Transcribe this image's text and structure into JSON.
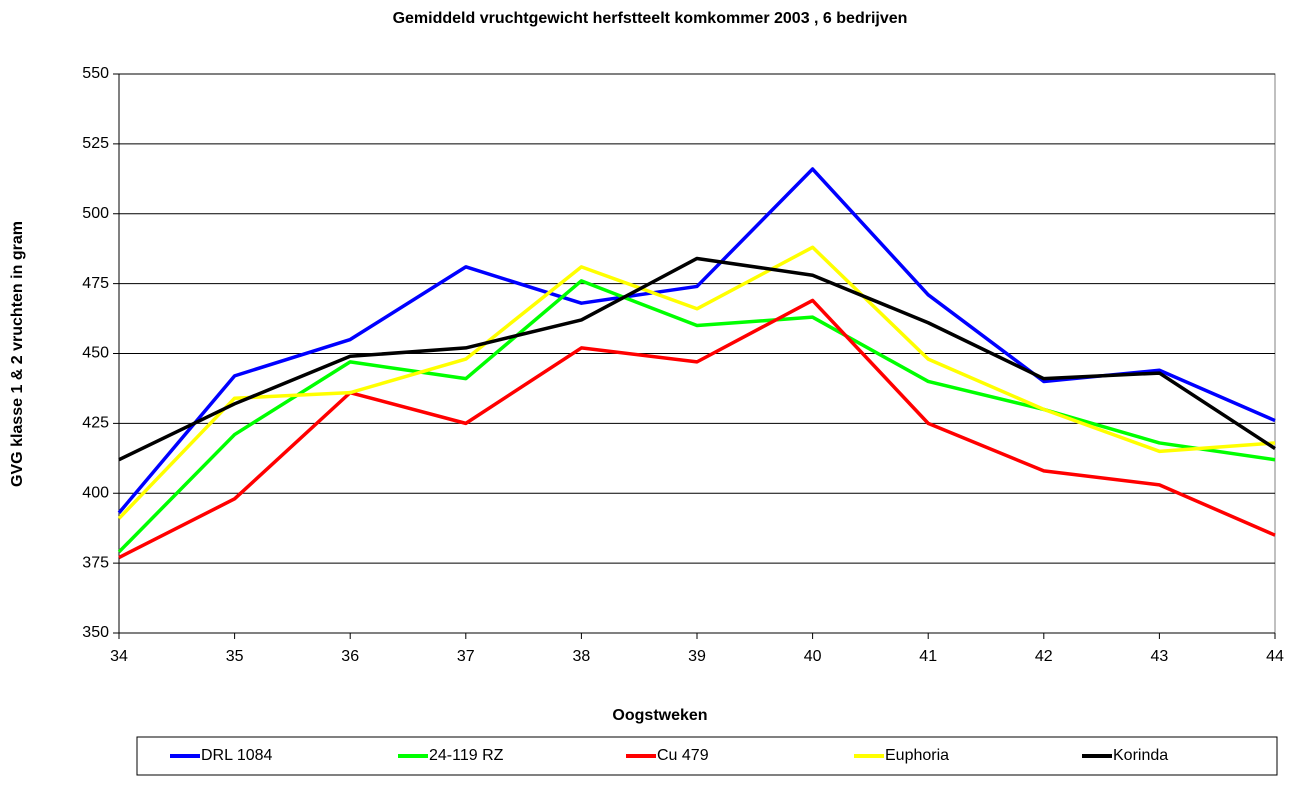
{
  "chart_data": {
    "type": "line",
    "title": "Gemiddeld vruchtgewicht herfstteelt komkommer 2003 , 6 bedrijven",
    "x_label": "Oogstweken",
    "y_label": "GVG klasse 1 & 2 vruchten in gram",
    "x": [
      34,
      35,
      36,
      37,
      38,
      39,
      40,
      41,
      42,
      43,
      44
    ],
    "xlim": [
      34,
      44
    ],
    "xticks": [
      34,
      35,
      36,
      37,
      38,
      39,
      40,
      41,
      42,
      43,
      44
    ],
    "ylim": [
      350,
      550
    ],
    "yticks": [
      350,
      375,
      400,
      425,
      450,
      475,
      500,
      525,
      550
    ],
    "grid": true,
    "legend": "bottom",
    "series": [
      {
        "name": "DRL 1084",
        "color": "#0000ff",
        "values": [
          393,
          442,
          455,
          481,
          468,
          474,
          516,
          471,
          440,
          444,
          426
        ]
      },
      {
        "name": "24-119 RZ",
        "color": "#00ff00",
        "values": [
          379,
          421,
          447,
          441,
          476,
          460,
          463,
          440,
          430,
          418,
          412
        ]
      },
      {
        "name": "Cu 479",
        "color": "#ff0000",
        "values": [
          377,
          398,
          436,
          425,
          452,
          447,
          469,
          425,
          408,
          403,
          385
        ]
      },
      {
        "name": "Euphoria",
        "color": "#ffff00",
        "values": [
          391,
          434,
          436,
          448,
          481,
          466,
          488,
          448,
          430,
          415,
          418
        ]
      },
      {
        "name": "Korinda",
        "color": "#000000",
        "values": [
          412,
          432,
          449,
          452,
          462,
          484,
          478,
          461,
          441,
          443,
          416
        ]
      }
    ]
  }
}
